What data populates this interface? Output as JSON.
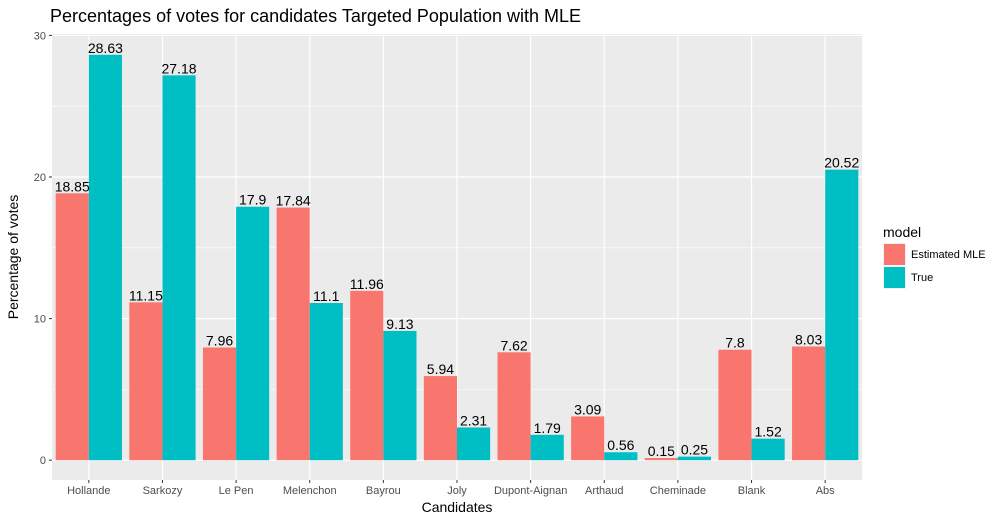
{
  "chart_data": {
    "type": "bar",
    "title": "Percentages of votes for candidates Targeted Population with MLE",
    "xlabel": "Candidates",
    "ylabel": "Percentage of votes",
    "ylim": [
      -1.4,
      30.1
    ],
    "yticks": [
      0,
      10,
      20,
      30
    ],
    "grid": true,
    "legend_position": "right",
    "legend_title": "model",
    "categories": [
      "Hollande",
      "Sarkozy",
      "Le Pen",
      "Melenchon",
      "Bayrou",
      "Joly",
      "Dupont-Aignan",
      "Arthaud",
      "Cheminade",
      "Blank",
      "Abs"
    ],
    "series": [
      {
        "name": "Estimated MLE",
        "color": "#F8766D",
        "values": [
          18.85,
          11.15,
          7.96,
          17.84,
          11.96,
          5.94,
          7.62,
          3.09,
          0.15,
          7.8,
          8.03
        ],
        "labels": [
          "18.85",
          "11.15",
          "7.96",
          "17.84",
          "11.96",
          "5.94",
          "7.62",
          "3.09",
          "0.15",
          "7.8",
          "8.03"
        ]
      },
      {
        "name": "True",
        "color": "#00BFC4",
        "values": [
          28.63,
          27.18,
          17.9,
          11.1,
          9.13,
          2.31,
          1.79,
          0.56,
          0.25,
          1.52,
          20.52
        ],
        "labels": [
          "28.63",
          "27.18",
          "17.9",
          "11.1",
          "9.13",
          "2.31",
          "1.79",
          "0.56",
          "0.25",
          "1.52",
          "20.52"
        ]
      }
    ]
  }
}
